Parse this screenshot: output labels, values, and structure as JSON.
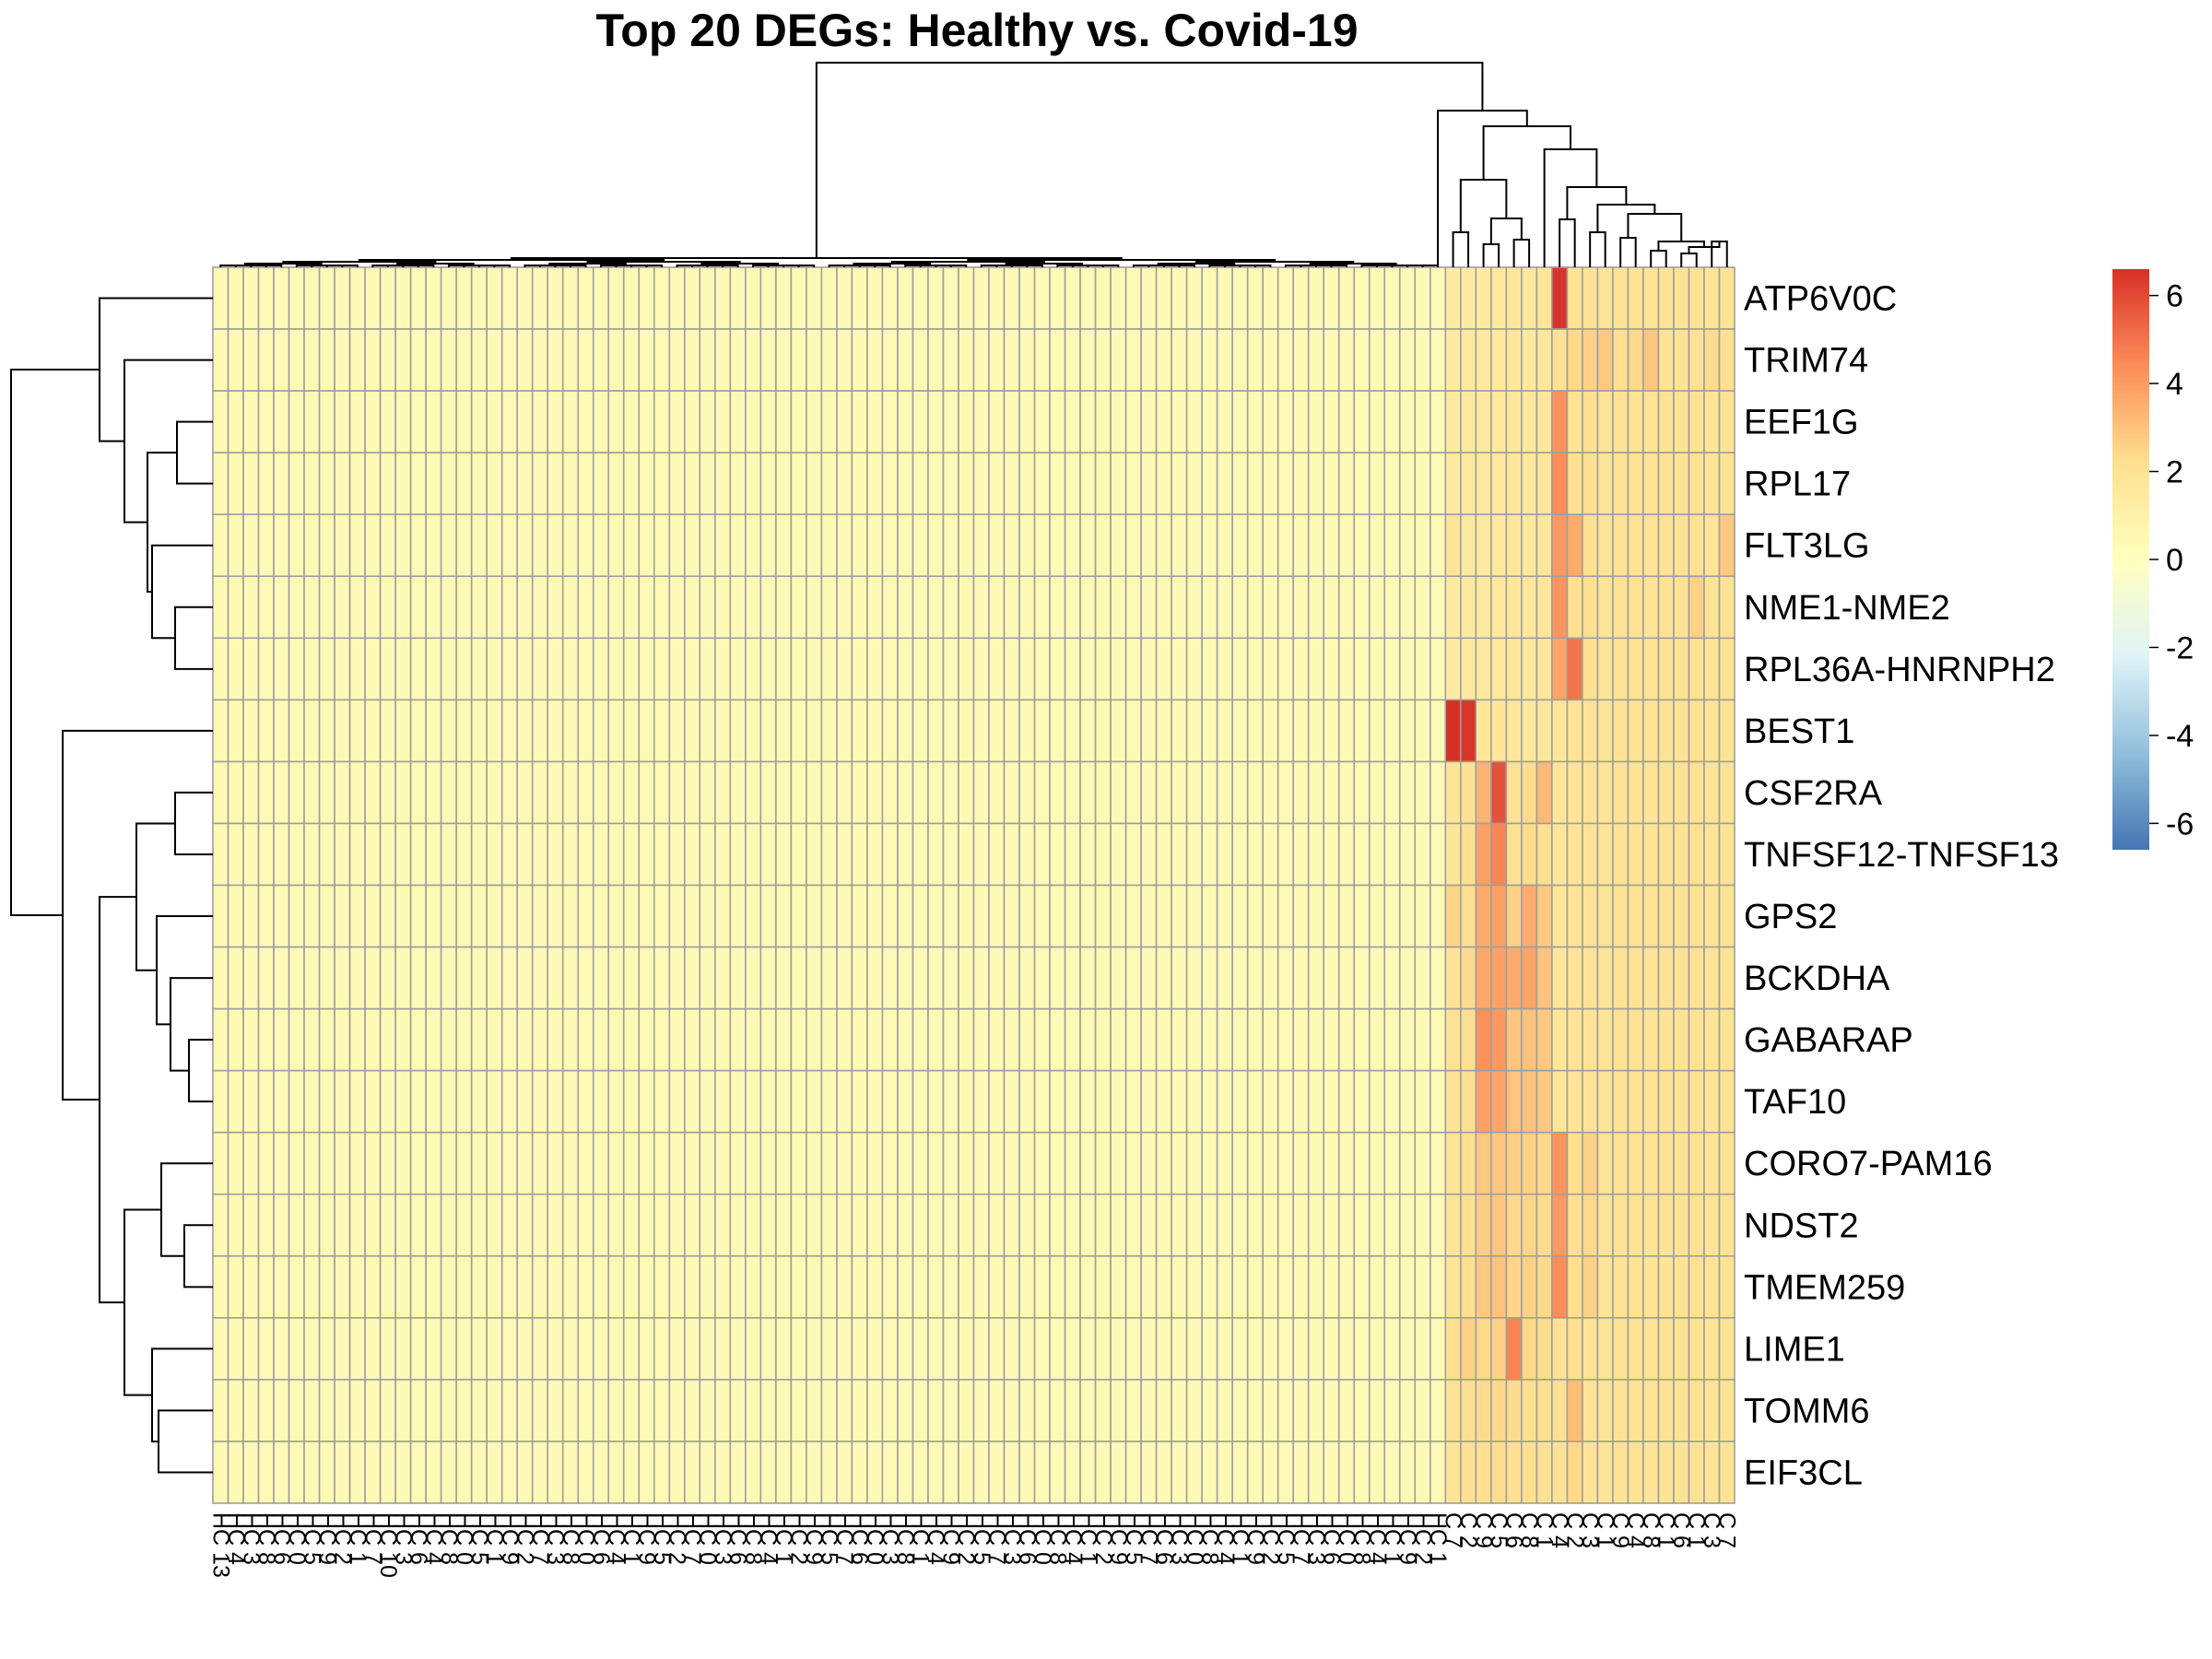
{
  "chart_data": {
    "type": "heatmap",
    "title": "Top 20 DEGs: Healthy vs. Covid-19",
    "rows": [
      "ATP6V0C",
      "TRIM74",
      "EEF1G",
      "RPL17",
      "FLT3LG",
      "NME1-NME2",
      "RPL36A-HNRNPH2",
      "BEST1",
      "CSF2RA",
      "TNFSF12-TNFSF13",
      "GPS2",
      "BCKDHA",
      "GABARAP",
      "TAF10",
      "CORO7-PAM16",
      "NDST2",
      "TMEM259",
      "LIME1",
      "TOMM6",
      "EIF3CL"
    ],
    "n_columns": 100,
    "n_healthy_columns": 81,
    "healthy_value": 0.4,
    "covid_columns": 19,
    "covid_values": [
      [
        1.4,
        1.4,
        1.4,
        1.6,
        1.7,
        1.6,
        1.8,
        6.5,
        2.0,
        2.1,
        1.9,
        2.0,
        2.0,
        1.9,
        2.0,
        2.0,
        2.1,
        1.9,
        2.0
      ],
      [
        1.4,
        1.5,
        1.5,
        1.6,
        1.7,
        1.6,
        1.7,
        2.0,
        2.4,
        2.6,
        2.8,
        2.2,
        2.4,
        2.9,
        2.0,
        2.0,
        2.1,
        2.3,
        2.2
      ],
      [
        1.4,
        1.5,
        1.5,
        1.6,
        1.7,
        1.6,
        1.7,
        4.3,
        2.0,
        2.2,
        1.9,
        2.0,
        2.0,
        1.9,
        2.0,
        2.0,
        2.1,
        1.9,
        2.0
      ],
      [
        1.4,
        1.5,
        1.5,
        1.6,
        1.7,
        1.6,
        1.7,
        4.4,
        2.1,
        2.2,
        1.9,
        2.0,
        2.0,
        1.9,
        2.0,
        2.0,
        2.1,
        1.9,
        2.0
      ],
      [
        1.9,
        1.5,
        1.5,
        1.6,
        1.7,
        1.6,
        1.7,
        4.1,
        3.6,
        2.2,
        1.9,
        2.0,
        2.0,
        1.9,
        2.0,
        2.0,
        2.1,
        1.9,
        2.8
      ],
      [
        1.4,
        1.5,
        1.5,
        1.6,
        1.7,
        1.6,
        1.7,
        4.2,
        2.1,
        2.2,
        1.9,
        2.0,
        2.0,
        1.9,
        2.0,
        2.0,
        2.6,
        1.9,
        2.0
      ],
      [
        1.4,
        1.5,
        1.5,
        1.6,
        1.7,
        1.6,
        1.7,
        3.8,
        5.0,
        2.2,
        1.9,
        2.0,
        2.0,
        1.9,
        2.0,
        2.0,
        2.1,
        1.9,
        2.0
      ],
      [
        6.6,
        6.5,
        1.7,
        1.8,
        1.7,
        1.6,
        1.7,
        1.8,
        1.9,
        2.0,
        1.9,
        2.0,
        2.0,
        1.9,
        2.0,
        2.0,
        2.1,
        1.9,
        2.0
      ],
      [
        1.9,
        2.1,
        3.4,
        5.8,
        2.1,
        2.3,
        3.2,
        1.8,
        1.9,
        2.0,
        1.9,
        2.0,
        2.0,
        1.9,
        2.0,
        2.0,
        2.1,
        1.9,
        2.0
      ],
      [
        1.8,
        2.2,
        3.9,
        4.6,
        2.1,
        2.3,
        2.2,
        1.8,
        1.9,
        2.0,
        1.9,
        2.0,
        2.0,
        1.9,
        2.0,
        2.0,
        2.1,
        1.9,
        2.0
      ],
      [
        2.5,
        2.2,
        3.6,
        3.9,
        2.6,
        3.6,
        2.8,
        1.8,
        1.9,
        2.0,
        1.9,
        2.0,
        2.0,
        1.9,
        2.0,
        2.0,
        2.1,
        1.9,
        2.0
      ],
      [
        2.0,
        2.3,
        3.7,
        3.9,
        3.6,
        3.8,
        3.0,
        1.8,
        1.9,
        2.0,
        1.9,
        2.0,
        2.0,
        1.9,
        2.0,
        2.0,
        2.1,
        1.9,
        2.0
      ],
      [
        2.1,
        2.2,
        4.3,
        4.1,
        2.9,
        3.0,
        2.8,
        1.8,
        1.9,
        2.0,
        1.9,
        2.0,
        2.0,
        1.9,
        2.0,
        2.0,
        2.1,
        1.9,
        2.0
      ],
      [
        2.0,
        2.2,
        3.9,
        3.8,
        3.0,
        3.0,
        2.8,
        1.8,
        1.9,
        2.0,
        1.9,
        2.0,
        2.0,
        1.9,
        2.0,
        2.0,
        2.1,
        1.9,
        2.0
      ],
      [
        1.9,
        2.2,
        2.8,
        2.9,
        2.6,
        2.6,
        2.4,
        4.2,
        2.2,
        2.6,
        1.9,
        2.0,
        2.0,
        1.9,
        2.0,
        2.0,
        2.1,
        1.9,
        2.0
      ],
      [
        1.9,
        2.2,
        2.7,
        2.9,
        2.4,
        2.5,
        2.3,
        4.1,
        2.1,
        2.4,
        1.9,
        2.0,
        2.0,
        1.9,
        2.0,
        2.0,
        2.1,
        1.9,
        2.0
      ],
      [
        1.9,
        2.2,
        2.8,
        3.0,
        2.5,
        2.6,
        2.4,
        4.4,
        2.2,
        2.6,
        1.9,
        2.0,
        2.0,
        1.9,
        2.0,
        2.0,
        2.1,
        1.9,
        2.0
      ],
      [
        2.2,
        2.6,
        2.4,
        2.6,
        4.6,
        2.4,
        2.3,
        2.0,
        2.1,
        2.0,
        1.9,
        2.0,
        2.0,
        1.9,
        2.0,
        2.0,
        2.1,
        1.9,
        2.0
      ],
      [
        2.0,
        2.2,
        2.3,
        2.4,
        2.3,
        2.2,
        2.2,
        2.1,
        3.1,
        2.0,
        1.9,
        2.0,
        2.0,
        1.9,
        2.0,
        2.0,
        2.1,
        1.9,
        2.0
      ],
      [
        1.9,
        2.1,
        2.2,
        2.3,
        2.2,
        2.2,
        2.1,
        2.0,
        2.4,
        2.0,
        1.9,
        2.0,
        2.0,
        1.9,
        2.0,
        2.0,
        2.1,
        1.9,
        2.0
      ]
    ],
    "legend": {
      "ticks": [
        "6",
        "4",
        "2",
        "0",
        "-2",
        "-4",
        "-6"
      ],
      "range": [
        -6.6,
        6.6
      ],
      "colors": [
        "#4575B4",
        "#91BFDB",
        "#E0F3F8",
        "#FFFFBF",
        "#FEE090",
        "#FC8D59",
        "#D73027"
      ]
    },
    "column_labels": [
      "HC 13",
      "HC 4",
      "HC 3",
      "HC 8",
      "HC 6",
      "HC 0",
      "HC 5",
      "HC 9",
      "HC 2",
      "HC 1",
      "HC 7",
      "HC 10",
      "HC 3",
      "HC 6",
      "HC 4",
      "HC 8",
      "HC 0",
      "HC 5",
      "HC 1",
      "HC 9",
      "HC 2",
      "HC 7",
      "HC 3",
      "HC 8",
      "HC 0",
      "HC 6",
      "HC 4",
      "HC 1",
      "HC 9",
      "HC 5",
      "HC 2",
      "HC 7",
      "HC 0",
      "HC 3",
      "HC 6",
      "HC 8",
      "HC 4",
      "HC 1",
      "HC 2",
      "HC 9",
      "HC 5",
      "HC 7",
      "HC 6",
      "HC 0",
      "HC 3",
      "HC 8",
      "HC 1",
      "HC 4",
      "HC 9",
      "HC 2",
      "HC 5",
      "HC 7",
      "HC 3",
      "HC 6",
      "HC 0",
      "HC 8",
      "HC 4",
      "HC 1",
      "HC 2",
      "HC 9",
      "HC 5",
      "HC 7",
      "HC 6",
      "HC 3",
      "HC 0",
      "HC 8",
      "HC 4",
      "HC 1",
      "HC 9",
      "HC 2",
      "HC 5",
      "HC 7",
      "HC 3",
      "HC 6",
      "HC 0",
      "HC 8",
      "HC 4",
      "HC 1",
      "HC 9",
      "HC 2",
      "HC 1",
      "C 7",
      "C 2",
      "C 9",
      "C 5",
      "C 6",
      "C 8",
      "C 1",
      "C 4",
      "C 2",
      "C 3",
      "C 1",
      "C 9",
      "C 4",
      "C 8",
      "C 1",
      "C 6",
      "C 1",
      "C 3",
      "C 7"
    ]
  }
}
